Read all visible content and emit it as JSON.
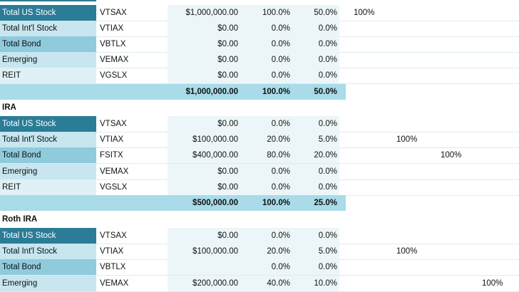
{
  "sections": [
    {
      "label": "",
      "rows": [
        {
          "name": "Total US Stock",
          "ticker": "VTSAX",
          "amount": "$1,000,000.00",
          "pct_section": "100.0%",
          "pct_total": "50.0%",
          "extra": "100%"
        },
        {
          "name": "Total Int'l Stock",
          "ticker": "VTIAX",
          "amount": "$0.00",
          "pct_section": "0.0%",
          "pct_total": "0.0%",
          "extra": ""
        },
        {
          "name": "Total Bond",
          "ticker": "VBTLX",
          "amount": "$0.00",
          "pct_section": "0.0%",
          "pct_total": "0.0%",
          "extra": ""
        },
        {
          "name": "Emerging",
          "ticker": "VEMAX",
          "amount": "$0.00",
          "pct_section": "0.0%",
          "pct_total": "0.0%",
          "extra": ""
        },
        {
          "name": "REIT",
          "ticker": "VGSLX",
          "amount": "$0.00",
          "pct_section": "0.0%",
          "pct_total": "0.0%",
          "extra": ""
        }
      ],
      "total": {
        "amount": "$1,000,000.00",
        "pct_section": "100.0%",
        "pct_total": "50.0%"
      }
    },
    {
      "label": "IRA",
      "rows": [
        {
          "name": "Total US Stock",
          "ticker": "VTSAX",
          "amount": "$0.00",
          "pct_section": "0.0%",
          "pct_total": "0.0%",
          "extra": ""
        },
        {
          "name": "Total Int'l Stock",
          "ticker": "VTIAX",
          "amount": "$100,000.00",
          "pct_section": "20.0%",
          "pct_total": "5.0%",
          "extra": "100%"
        },
        {
          "name": "Total Bond",
          "ticker": "FSITX",
          "amount": "$400,000.00",
          "pct_section": "80.0%",
          "pct_total": "20.0%",
          "extra": "100%"
        },
        {
          "name": "Emerging",
          "ticker": "VEMAX",
          "amount": "$0.00",
          "pct_section": "0.0%",
          "pct_total": "0.0%",
          "extra": ""
        },
        {
          "name": "REIT",
          "ticker": "VGSLX",
          "amount": "$0.00",
          "pct_section": "0.0%",
          "pct_total": "0.0%",
          "extra": ""
        }
      ],
      "total": {
        "amount": "$500,000.00",
        "pct_section": "100.0%",
        "pct_total": "25.0%"
      }
    },
    {
      "label": "Roth IRA",
      "rows": [
        {
          "name": "Total US Stock",
          "ticker": "VTSAX",
          "amount": "$0.00",
          "pct_section": "0.0%",
          "pct_total": "0.0%",
          "extra": ""
        },
        {
          "name": "Total Int'l Stock",
          "ticker": "VTIAX",
          "amount": "$100,000.00",
          "pct_section": "20.0%",
          "pct_total": "5.0%",
          "extra": "100%"
        },
        {
          "name": "Total Bond",
          "ticker": "VBTLX",
          "amount": "",
          "pct_section": "0.0%",
          "pct_total": "0.0%",
          "extra": ""
        },
        {
          "name": "Emerging",
          "ticker": "VEMAX",
          "amount": "$200,000.00",
          "pct_section": "40.0%",
          "pct_total": "10.0%",
          "extra": "100%"
        }
      ]
    }
  ],
  "colors": {
    "dark": "#2b7c97",
    "mid": "#8fcadd",
    "light": "#c7e6ef",
    "pale": "#dff1f6",
    "total": "#a9dbe9"
  }
}
